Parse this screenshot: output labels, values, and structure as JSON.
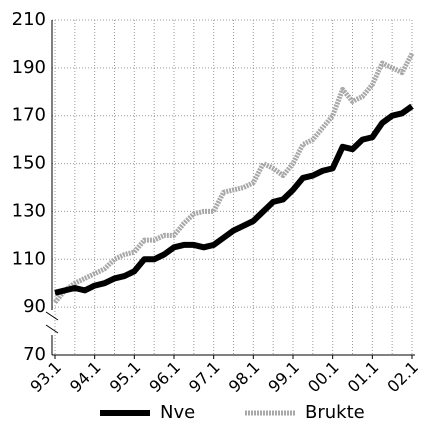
{
  "chart_data": {
    "type": "line",
    "categories": [
      "93.1",
      null,
      null,
      null,
      "94.1",
      null,
      null,
      null,
      "95.1",
      null,
      null,
      null,
      "96.1",
      null,
      null,
      null,
      "97.1",
      null,
      null,
      null,
      "98.1",
      null,
      null,
      null,
      "99.1",
      null,
      null,
      null,
      "00.1",
      null,
      null,
      null,
      "01.1",
      null,
      null,
      null,
      "02.1"
    ],
    "series": [
      {
        "name": "Nve",
        "color": "#000000",
        "values": [
          96,
          97,
          98,
          97,
          99,
          100,
          102,
          103,
          105,
          110,
          110,
          112,
          115,
          116,
          116,
          115,
          116,
          119,
          122,
          124,
          126,
          130,
          134,
          135,
          139,
          144,
          145,
          147,
          148,
          157,
          156,
          160,
          161,
          167,
          170,
          171,
          174
        ]
      },
      {
        "name": "Brukte",
        "color": "#a8a8a8",
        "values": [
          92,
          97,
          100,
          102,
          104,
          106,
          110,
          112,
          113,
          118,
          118,
          120,
          120,
          125,
          129,
          130,
          130,
          138,
          139,
          140,
          142,
          150,
          148,
          145,
          150,
          158,
          160,
          165,
          170,
          181,
          176,
          178,
          183,
          192,
          190,
          188,
          196
        ]
      }
    ],
    "ylim": [
      70,
      210
    ],
    "yticks": [
      70,
      90,
      110,
      130,
      150,
      170,
      190,
      210
    ],
    "grid": true,
    "legend": "bottom"
  }
}
